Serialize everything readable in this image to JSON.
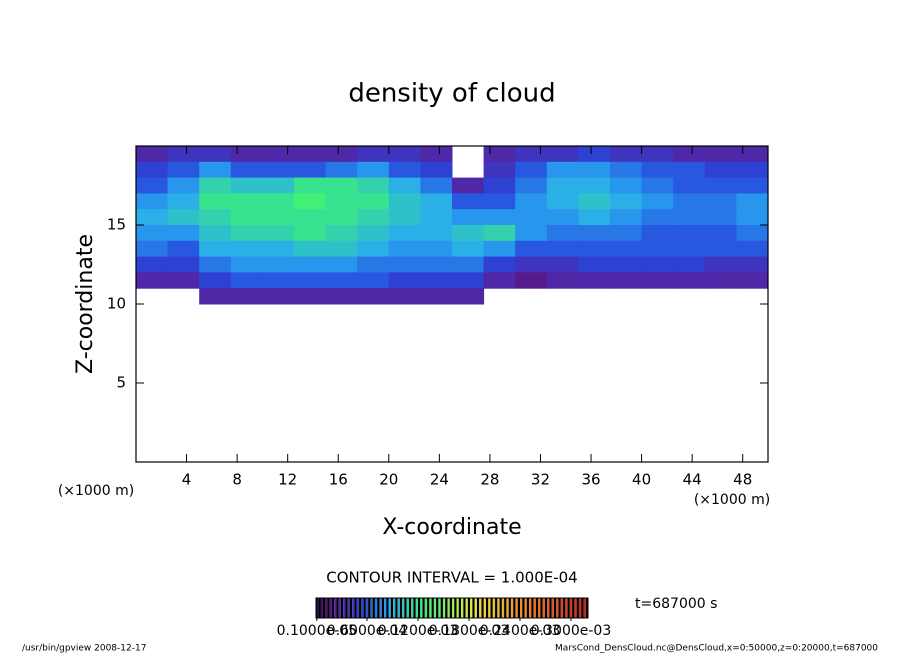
{
  "chart_data": {
    "type": "heatmap",
    "title": "density of cloud",
    "x_label": "X-coordinate",
    "y_label": "Z-coordinate",
    "x_unit": "(×1000 m)",
    "y_unit": "(×1000 m)",
    "contour_interval": "CONTOUR INTERVAL = 1.000E-04",
    "time_label": "t=687000 s",
    "footer_left": "/usr/bin/gpview   2008-12-17",
    "footer_right": "MarsCond_DensCloud.nc@DensCloud,x=0:50000,z=0:20000,t=687000",
    "xlim": [
      0,
      50
    ],
    "ylim": [
      0,
      20
    ],
    "xticks": [
      4,
      8,
      12,
      16,
      20,
      24,
      28,
      32,
      36,
      40,
      44,
      48
    ],
    "yticks": [
      5,
      10,
      15
    ],
    "x": [
      1.25,
      3.75,
      6.25,
      8.75,
      11.25,
      13.75,
      16.25,
      18.75,
      21.25,
      23.75,
      26.25,
      28.75,
      31.25,
      33.75,
      36.25,
      38.75,
      41.25,
      43.75,
      46.25,
      48.75
    ],
    "y": [
      19.5,
      18.5,
      17.5,
      16.5,
      15.5,
      14.5,
      13.5,
      12.5,
      11.5,
      10.5
    ],
    "z": [
      [
        3e-05,
        4e-05,
        4e-05,
        3e-05,
        3e-05,
        3e-05,
        3e-05,
        4e-05,
        4e-05,
        3e-05,
        null,
        3e-05,
        4e-05,
        4e-05,
        5e-05,
        4e-05,
        4e-05,
        3e-05,
        3e-05,
        3e-05
      ],
      [
        5e-05,
        6e-05,
        8e-05,
        6e-05,
        6e-05,
        6e-05,
        7e-05,
        8e-05,
        6e-05,
        5e-05,
        null,
        4e-05,
        6e-05,
        8e-05,
        8e-05,
        7e-05,
        6e-05,
        6e-05,
        5e-05,
        5e-05
      ],
      [
        6e-05,
        8e-05,
        0.00011,
        0.0001,
        0.0001,
        0.00012,
        0.00012,
        0.00011,
        9e-05,
        7e-05,
        3e-05,
        5e-05,
        7e-05,
        9e-05,
        9e-05,
        8e-05,
        7e-05,
        6e-05,
        6e-05,
        6e-05
      ],
      [
        8e-05,
        9e-05,
        0.00012,
        0.00012,
        0.00012,
        0.00013,
        0.00012,
        0.00012,
        0.0001,
        9e-05,
        6e-05,
        6e-05,
        8e-05,
        9e-05,
        0.0001,
        9e-05,
        8e-05,
        7e-05,
        7e-05,
        8e-05
      ],
      [
        9e-05,
        0.0001,
        0.00011,
        0.00012,
        0.00012,
        0.00012,
        0.00012,
        0.00011,
        0.0001,
        9e-05,
        8e-05,
        8e-05,
        8e-05,
        8e-05,
        9e-05,
        8e-05,
        7e-05,
        7e-05,
        7e-05,
        8e-05
      ],
      [
        8e-05,
        8e-05,
        0.0001,
        0.00011,
        0.00011,
        0.00012,
        0.00011,
        0.0001,
        9e-05,
        9e-05,
        0.0001,
        0.00011,
        8e-05,
        7e-05,
        7e-05,
        7e-05,
        6e-05,
        6e-05,
        6e-05,
        7e-05
      ],
      [
        7e-05,
        6e-05,
        9e-05,
        9e-05,
        9e-05,
        0.0001,
        0.0001,
        9e-05,
        8e-05,
        8e-05,
        9e-05,
        8e-05,
        6e-05,
        6e-05,
        6e-05,
        6e-05,
        6e-05,
        6e-05,
        6e-05,
        6e-05
      ],
      [
        5e-05,
        5e-05,
        7e-05,
        8e-05,
        8e-05,
        8e-05,
        8e-05,
        7e-05,
        7e-05,
        7e-05,
        7e-05,
        5e-05,
        4e-05,
        4e-05,
        5e-05,
        5e-05,
        5e-05,
        5e-05,
        4e-05,
        4e-05
      ],
      [
        3e-05,
        3e-05,
        5e-05,
        6e-05,
        6e-05,
        6e-05,
        6e-05,
        6e-05,
        5e-05,
        5e-05,
        5e-05,
        3e-05,
        2e-05,
        3e-05,
        3e-05,
        3e-05,
        3e-05,
        3e-05,
        3e-05,
        3e-05
      ],
      [
        null,
        null,
        3e-05,
        3e-05,
        3e-05,
        3e-05,
        3e-05,
        3e-05,
        3e-05,
        3e-05,
        3e-05,
        null,
        null,
        null,
        null,
        null,
        null,
        null,
        null,
        null
      ]
    ],
    "colorbar": {
      "lim": [
        0,
        0.00032
      ],
      "ticks": [
        {
          "value": 1e-06,
          "label": "0.1000e-05"
        },
        {
          "value": 6e-05,
          "label": "0.6000e-04"
        },
        {
          "value": 0.00012,
          "label": "0.1200e-03"
        },
        {
          "value": 0.00018,
          "label": "0.1800e-03"
        },
        {
          "value": 0.00024,
          "label": "0.2400e-03"
        },
        {
          "value": 0.0003,
          "label": "0.3000e-03"
        }
      ]
    }
  }
}
